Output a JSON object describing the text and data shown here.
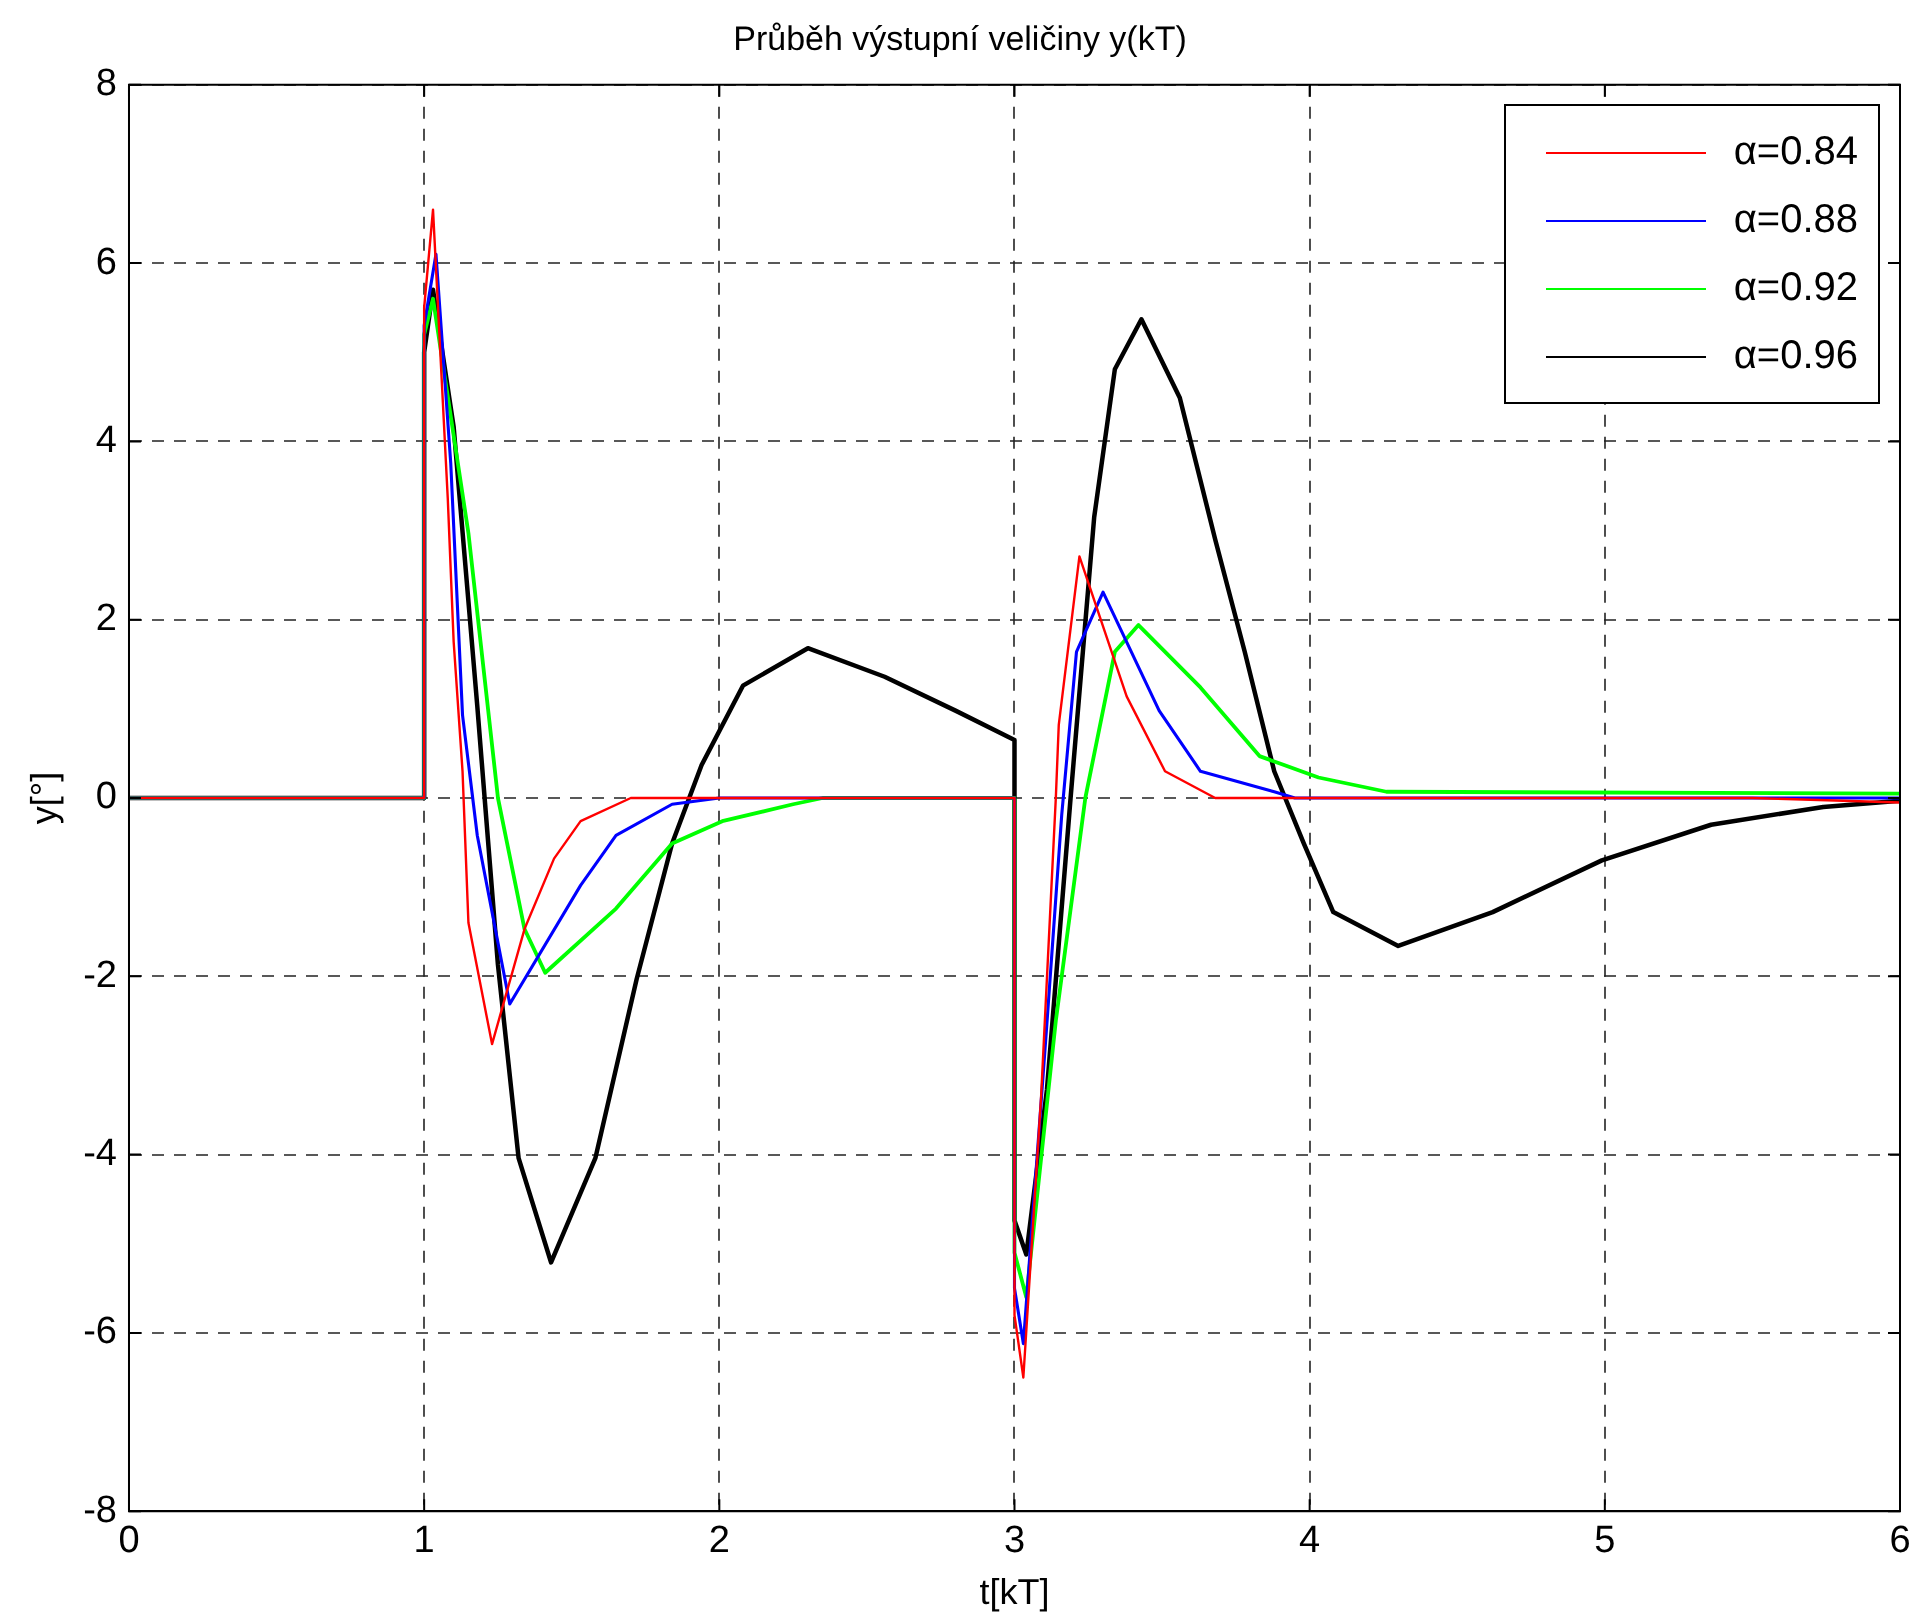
{
  "chart_data": {
    "type": "line",
    "title": "Průběh výstupní veličiny y(kT)",
    "xlabel": "t[kT]",
    "ylabel": "y[°]",
    "xlim": [
      0,
      6
    ],
    "xticks": [
      0,
      1,
      2,
      3,
      4,
      5,
      6
    ],
    "ylim": [
      -8,
      8
    ],
    "yticks": [
      -8,
      -6,
      -4,
      -2,
      0,
      2,
      4,
      6,
      8
    ],
    "grid": true,
    "legend": "top right",
    "marker": "none",
    "line_style": "solid",
    "series": [
      {
        "name": "α=0.84",
        "color": "#ff0000",
        "x": [
          0,
          1,
          1,
          1.03,
          1.08,
          1.1,
          1.13,
          1.15,
          1.23,
          1.34,
          1.44,
          1.53,
          1.7,
          3,
          3,
          3.03,
          3.09,
          3.14,
          3.15,
          3.22,
          3.38,
          3.51,
          3.68,
          5.5,
          6
        ],
        "values": [
          0,
          0,
          5.5,
          6.6,
          3.36,
          1.75,
          0.3,
          -1.4,
          -2.76,
          -1.47,
          -0.68,
          -0.26,
          0,
          0,
          -5.8,
          -6.5,
          -3.36,
          0,
          0.82,
          2.71,
          1.14,
          0.3,
          0,
          0,
          -0.05
        ]
      },
      {
        "name": "α=0.88",
        "color": "#0000ff",
        "x": [
          0,
          1,
          1,
          1.04,
          1.09,
          1.13,
          1.18,
          1.29,
          1.53,
          1.65,
          1.84,
          2.0,
          3,
          3,
          3.03,
          3.11,
          3.16,
          3.21,
          3.3,
          3.49,
          3.63,
          3.88,
          3.95,
          6
        ],
        "values": [
          0,
          0,
          5.3,
          6.1,
          3.76,
          0.93,
          -0.42,
          -2.31,
          -0.98,
          -0.42,
          -0.07,
          0,
          0,
          -5.5,
          -6.12,
          -2.52,
          -0.19,
          1.64,
          2.31,
          0.98,
          0.3,
          0.07,
          0,
          0
        ]
      },
      {
        "name": "α=0.92",
        "color": "#00ff00",
        "x": [
          0,
          1,
          1,
          1.03,
          1.15,
          1.25,
          1.34,
          1.41,
          1.65,
          1.84,
          2.01,
          2.25,
          2.35,
          3,
          3,
          3.04,
          3.14,
          3.24,
          3.34,
          3.42,
          3.63,
          3.83,
          4.03,
          4.26,
          6
        ],
        "values": [
          0,
          0,
          5.2,
          5.6,
          2.97,
          0,
          -1.47,
          -1.96,
          -1.24,
          -0.51,
          -0.26,
          -0.07,
          0,
          0,
          -5.1,
          -5.6,
          -2.5,
          0,
          1.64,
          1.94,
          1.24,
          0.47,
          0.23,
          0.07,
          0.05
        ]
      },
      {
        "name": "α=0.96",
        "color": "#000000",
        "x": [
          0,
          1,
          1,
          1.03,
          1.1,
          1.18,
          1.25,
          1.32,
          1.43,
          1.58,
          1.72,
          1.84,
          1.94,
          2.08,
          2.3,
          2.56,
          2.8,
          3,
          3,
          3.04,
          3.11,
          3.19,
          3.27,
          3.34,
          3.43,
          3.56,
          3.68,
          3.78,
          3.88,
          3.98,
          4.08,
          4.3,
          4.62,
          4.99,
          5.36,
          5.74,
          6
        ],
        "values": [
          0,
          0,
          5.0,
          5.7,
          4.16,
          1.03,
          -1.87,
          -4.04,
          -5.21,
          -4.04,
          -2.03,
          -0.51,
          0.37,
          1.26,
          1.68,
          1.36,
          0.98,
          0.65,
          -4.74,
          -5.12,
          -3.27,
          0,
          3.15,
          4.81,
          5.37,
          4.49,
          2.9,
          1.64,
          0.3,
          -0.51,
          -1.28,
          -1.66,
          -1.28,
          -0.7,
          -0.3,
          -0.1,
          -0.03
        ]
      }
    ]
  }
}
